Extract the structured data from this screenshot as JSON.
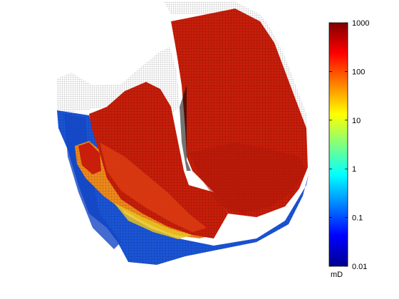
{
  "chart_data": {
    "type": "surface",
    "title": "",
    "xlabel": "",
    "ylabel": "",
    "zlabel": "",
    "grid": false,
    "colormap": "jet",
    "color_scale": "log",
    "colorbar": {
      "label": "mD",
      "range": [
        0.01,
        1000
      ],
      "tick_values": [
        0.01,
        0.1,
        1,
        10,
        100,
        1000
      ],
      "tick_labels": [
        "0.01",
        "0.1",
        "1",
        "10",
        "100",
        "1000"
      ],
      "placement": "right"
    },
    "colors": {
      "high": "#c81e0a",
      "mid_high": "#e04010",
      "transition": "#f08a1a",
      "low": "#1a55d8",
      "mesh_edge": "#000000",
      "inactive": "#ffffff"
    }
  }
}
